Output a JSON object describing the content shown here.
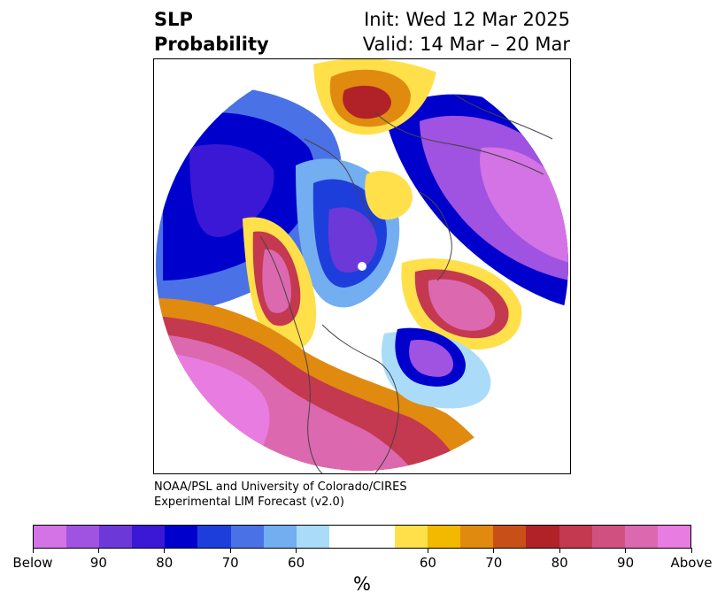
{
  "title": {
    "left_line1": "SLP",
    "left_line2": "Probability",
    "right_line1": "Init: Wed 12 Mar 2025",
    "right_line2": "Valid: 14 Mar – 20 Mar"
  },
  "credit": {
    "line1": "NOAA/PSL and University of Colorado/CIRES",
    "line2": "Experimental LIM Forecast (v2.0)"
  },
  "colorbar": {
    "unit": "%",
    "colors": [
      "#d473e6",
      "#a052e0",
      "#6d38d8",
      "#3a18d6",
      "#0000cc",
      "#1e3edc",
      "#4a72e6",
      "#73aef0",
      "#aadcfa",
      "#ffffff",
      "#ffffff",
      "#ffe04a",
      "#f3b800",
      "#e08a10",
      "#c85018",
      "#b02228",
      "#c43850",
      "#d05080",
      "#dc68b0",
      "#e87ce0"
    ],
    "labels": [
      "Below",
      "90",
      "80",
      "70",
      "60",
      "60",
      "70",
      "80",
      "90",
      "Above"
    ]
  },
  "map": {
    "projection": "north-polar-stereographic",
    "palette": {
      "deep_blue": "#0000cc",
      "mid_blue": "#1e3edc",
      "light_blue": "#73aef0",
      "pale_blue": "#aadcfa",
      "purple": "#a052e0",
      "violet": "#6d38d8",
      "yellow": "#ffe04a",
      "orange": "#e08a10",
      "red": "#c43850",
      "pink": "#dc68b0",
      "magenta": "#e87ce0"
    }
  }
}
